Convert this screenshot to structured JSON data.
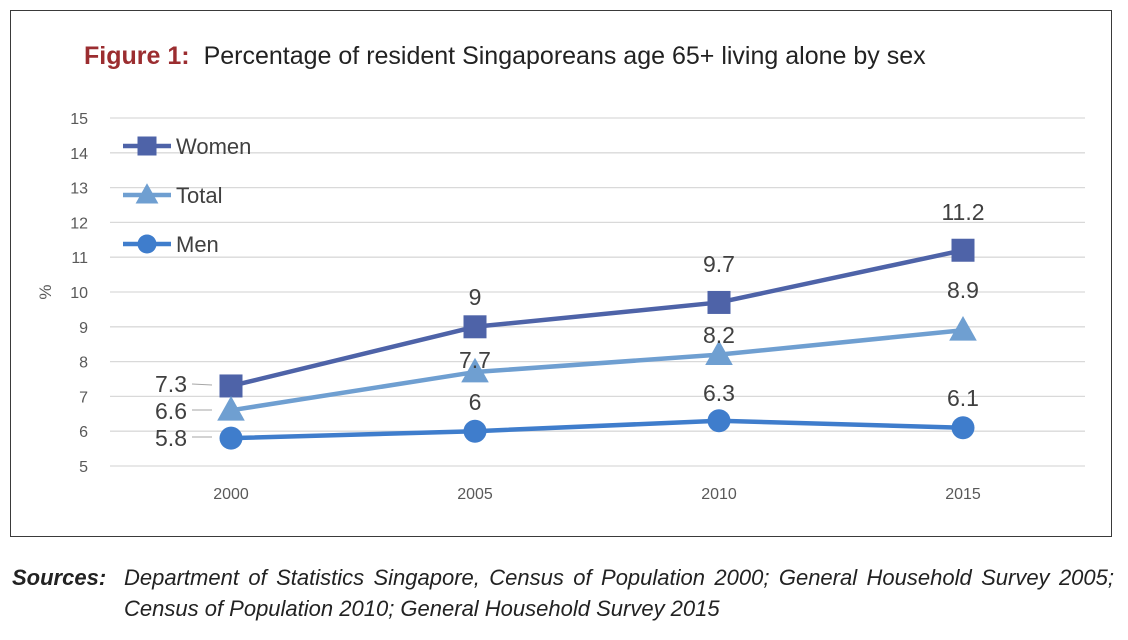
{
  "figure": {
    "label": "Figure 1:",
    "title": "Percentage of resident Singaporeans age 65+ living alone by sex"
  },
  "sources": {
    "label": "Sources:",
    "text": "Department of Statistics Singapore, Census of Population 2000; General Household Survey 2005; Census of Population 2010; General Household Survey 2015"
  },
  "chart_data": {
    "type": "line",
    "title": "Percentage of resident Singaporeans age 65+ living alone by sex",
    "xlabel": "",
    "ylabel": "%",
    "categories": [
      "2000",
      "2005",
      "2010",
      "2015"
    ],
    "ylim": [
      5,
      15
    ],
    "yticks": [
      5,
      6,
      7,
      8,
      9,
      10,
      11,
      12,
      13,
      14,
      15
    ],
    "grid": true,
    "legend": "top-left",
    "series": [
      {
        "name": "Women",
        "values": [
          7.3,
          9,
          9.7,
          11.2
        ],
        "labels": [
          "7.3",
          "9",
          "9.7",
          "11.2"
        ],
        "color": "#4e63a8",
        "marker": "square"
      },
      {
        "name": "Total",
        "values": [
          6.6,
          7.7,
          8.2,
          8.9
        ],
        "labels": [
          "6.6",
          "7.7",
          "8.2",
          "8.9"
        ],
        "color": "#6f9fd1",
        "marker": "triangle"
      },
      {
        "name": "Men",
        "values": [
          5.8,
          6,
          6.3,
          6.1
        ],
        "labels": [
          "5.8",
          "6",
          "6.3",
          "6.1"
        ],
        "color": "#3f7dcc",
        "marker": "circle"
      }
    ]
  }
}
